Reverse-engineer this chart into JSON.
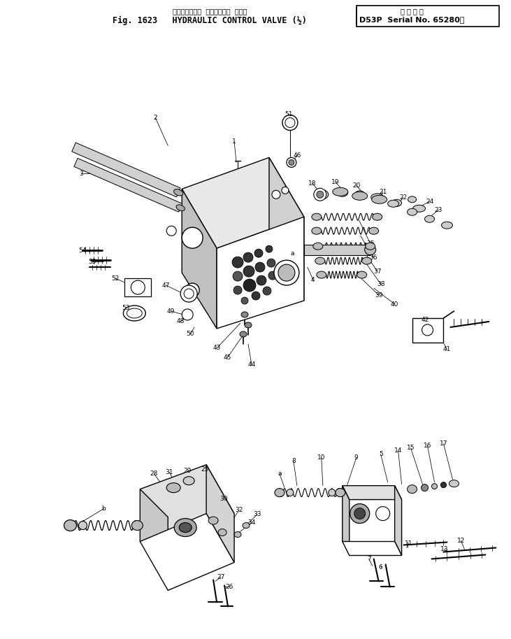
{
  "bg_color": "#ffffff",
  "fig_width": 7.31,
  "fig_height": 9.14,
  "dpi": 100,
  "header": {
    "jp_title": "ハイドロリック  コントロール  バルブ",
    "en_title": "Fig. 1623   HYDRAULIC CONTROL VALVE (1/2)",
    "model_jp": "適用号機",
    "model_en": "D53P  Serial No. 65280縼"
  }
}
